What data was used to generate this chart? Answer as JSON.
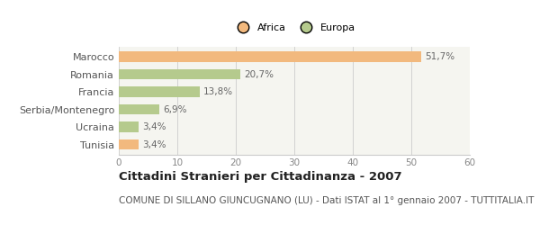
{
  "categories": [
    "Marocco",
    "Romania",
    "Francia",
    "Serbia/Montenegro",
    "Ucraina",
    "Tunisia"
  ],
  "values": [
    51.7,
    20.7,
    13.8,
    6.9,
    3.4,
    3.4
  ],
  "labels": [
    "51,7%",
    "20,7%",
    "13,8%",
    "6,9%",
    "3,4%",
    "3,4%"
  ],
  "colors": [
    "#f2b97e",
    "#b5ca8d",
    "#b5ca8d",
    "#b5ca8d",
    "#b5ca8d",
    "#f2b97e"
  ],
  "legend_items": [
    {
      "label": "Africa",
      "color": "#f2b97e"
    },
    {
      "label": "Europa",
      "color": "#b5ca8d"
    }
  ],
  "xlim": [
    0,
    60
  ],
  "xticks": [
    0,
    10,
    20,
    30,
    40,
    50,
    60
  ],
  "title": "Cittadini Stranieri per Cittadinanza - 2007",
  "subtitle": "COMUNE DI SILLANO GIUNCUGNANO (LU) - Dati ISTAT al 1° gennaio 2007 - TUTTITALIA.IT",
  "bg_color": "#ffffff",
  "plot_bg_color": "#f5f5f0",
  "bar_height": 0.58,
  "title_fontsize": 9.5,
  "subtitle_fontsize": 7.5,
  "label_fontsize": 7.5,
  "tick_fontsize": 7.5,
  "yticklabel_fontsize": 8
}
